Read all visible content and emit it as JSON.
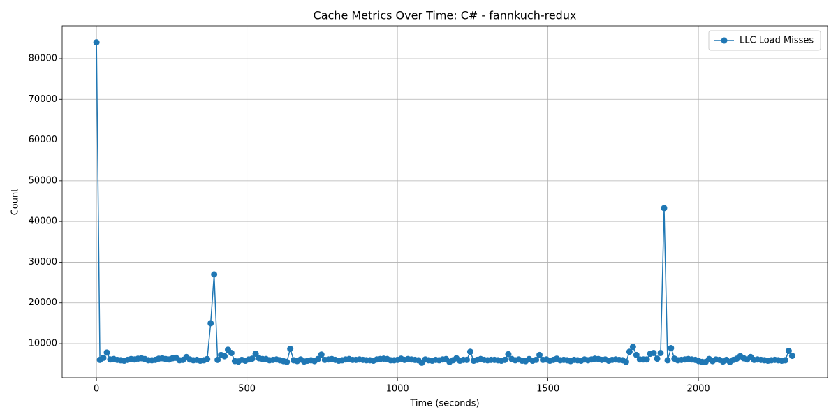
{
  "chart_data": {
    "type": "line",
    "title": "Cache Metrics Over Time: C# - fannkuch-redux",
    "x_label": "Time (seconds)",
    "y_label": "Count",
    "x": [
      0,
      11.5,
      23,
      34.5,
      46,
      57.5,
      69,
      80.5,
      92,
      103.5,
      115,
      126.5,
      138,
      149.5,
      161,
      172.5,
      184,
      195.5,
      207,
      218.5,
      230,
      241.5,
      253,
      264.5,
      276,
      287.5,
      299,
      310.5,
      322,
      333.5,
      345,
      356.5,
      368,
      379.5,
      391,
      402.5,
      414,
      425.5,
      437,
      448.5,
      460,
      471.5,
      483,
      494.5,
      506,
      517.5,
      529,
      540.5,
      552,
      563.5,
      575,
      586.5,
      598,
      609.5,
      621,
      632.5,
      644,
      655.5,
      667,
      678.5,
      690,
      701.5,
      713,
      724.5,
      736,
      747.5,
      759,
      770.5,
      782,
      793.5,
      805,
      816.5,
      828,
      839.5,
      851,
      862.5,
      874,
      885.5,
      897,
      908.5,
      920,
      931.5,
      943,
      954.5,
      966,
      977.5,
      989,
      1000.5,
      1012,
      1023.5,
      1035,
      1046.5,
      1058,
      1069.5,
      1081,
      1092.5,
      1104,
      1115.5,
      1127,
      1138.5,
      1150,
      1161.5,
      1173,
      1184.5,
      1196,
      1207.5,
      1219,
      1230.5,
      1242,
      1253.5,
      1265,
      1276.5,
      1288,
      1299.5,
      1311,
      1322.5,
      1334,
      1345.5,
      1357,
      1368.5,
      1380,
      1391.5,
      1403,
      1414.5,
      1426,
      1437.5,
      1449,
      1460.5,
      1472,
      1483.5,
      1495,
      1506.5,
      1518,
      1529.5,
      1541,
      1552.5,
      1564,
      1575.5,
      1587,
      1598.5,
      1610,
      1621.5,
      1633,
      1644.5,
      1656,
      1667.5,
      1679,
      1690.5,
      1702,
      1713.5,
      1725,
      1736.5,
      1748,
      1759.5,
      1771,
      1782.5,
      1794,
      1805.5,
      1817,
      1828.5,
      1840,
      1851.5,
      1863,
      1874.5,
      1886,
      1897.5,
      1909,
      1920.5,
      1932,
      1943.5,
      1955,
      1966.5,
      1978,
      1989.5,
      2001,
      2012.5,
      2024,
      2035.5,
      2047,
      2058.5,
      2070,
      2081.5,
      2093,
      2104.5,
      2116,
      2127.5,
      2139,
      2150.5,
      2162,
      2173.5,
      2185,
      2196.5,
      2208,
      2219.5,
      2231,
      2242.5,
      2254,
      2265.5,
      2277,
      2288.5,
      2300,
      2311.5
    ],
    "series": [
      {
        "name": "LLC Load Misses",
        "color": "#1f77b4",
        "values": [
          84000,
          6000,
          6500,
          7800,
          6100,
          6200,
          6000,
          5900,
          5800,
          6000,
          6200,
          6100,
          6300,
          6400,
          6200,
          5900,
          5900,
          6000,
          6300,
          6400,
          6200,
          6100,
          6400,
          6500,
          5900,
          6000,
          6700,
          6100,
          5900,
          6000,
          5800,
          5900,
          6200,
          15000,
          27000,
          6000,
          7200,
          6900,
          8500,
          7700,
          5700,
          5600,
          6000,
          5800,
          6100,
          6300,
          7500,
          6400,
          6200,
          6200,
          5900,
          6000,
          6100,
          5900,
          5700,
          5500,
          8700,
          5900,
          5700,
          6100,
          5600,
          5800,
          5900,
          5700,
          6200,
          7300,
          6000,
          6100,
          6200,
          6000,
          5800,
          5900,
          6100,
          6200,
          6000,
          6000,
          6100,
          6000,
          5900,
          5900,
          5800,
          6100,
          6200,
          6300,
          6200,
          5900,
          5900,
          6000,
          6300,
          6000,
          6200,
          6100,
          6000,
          5900,
          5300,
          6100,
          5900,
          5800,
          6000,
          5900,
          6100,
          6200,
          5500,
          5900,
          6400,
          5800,
          6000,
          6000,
          8000,
          5800,
          6000,
          6200,
          6000,
          5900,
          6000,
          6000,
          5900,
          5800,
          6000,
          7400,
          6200,
          5900,
          6100,
          5800,
          5700,
          6200,
          5800,
          6000,
          7200,
          6000,
          6100,
          5800,
          6000,
          6300,
          5900,
          6000,
          5900,
          5700,
          6000,
          5900,
          5800,
          6100,
          5900,
          6100,
          6300,
          6200,
          6000,
          6100,
          5800,
          6000,
          6100,
          6000,
          5900,
          5500,
          8000,
          9200,
          7200,
          6100,
          6100,
          6100,
          7500,
          7700,
          6300,
          7700,
          43300,
          5900,
          8900,
          6300,
          5900,
          6000,
          6100,
          6200,
          6100,
          6000,
          5700,
          5500,
          5500,
          6200,
          5700,
          6100,
          6000,
          5600,
          6000,
          5500,
          6000,
          6300,
          6900,
          6400,
          6100,
          6700,
          6000,
          6100,
          6000,
          5900,
          5800,
          5900,
          6000,
          5900,
          5800,
          5900,
          8200,
          7000
        ]
      }
    ],
    "xlim": [
      -114,
      2429
    ],
    "ylim": [
      1600,
      88060
    ],
    "xticks": [
      0,
      500,
      1000,
      1500,
      2000
    ],
    "yticks": [
      10000,
      20000,
      30000,
      40000,
      50000,
      60000,
      70000,
      80000
    ],
    "grid": true,
    "legend": "upper right"
  }
}
